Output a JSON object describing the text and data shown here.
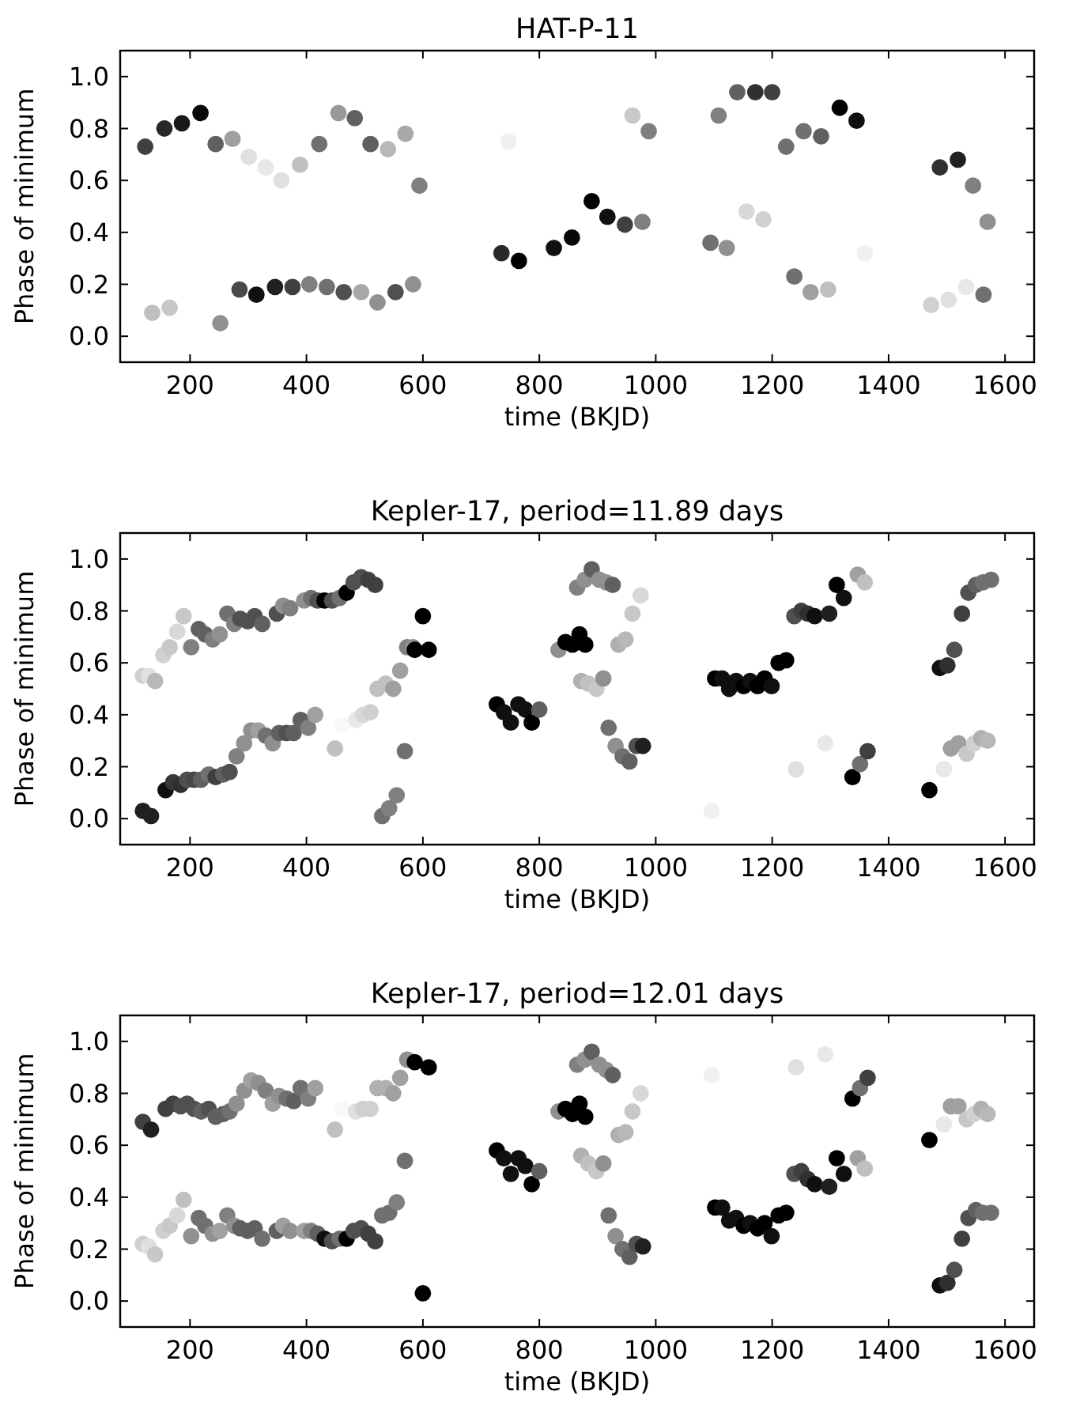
{
  "chart_data": [
    {
      "type": "scatter",
      "title": "HAT-P-11",
      "xlabel": "time (BKJD)",
      "ylabel": "Phase of minimum",
      "marker": "circle",
      "xlim": [
        80,
        1650
      ],
      "ylim": [
        -0.1,
        1.1
      ],
      "xticks": [
        200,
        400,
        600,
        800,
        1000,
        1200,
        1400,
        1600
      ],
      "yticks": [
        {
          "value": 0,
          "label": "0.0"
        },
        {
          "value": 0.2,
          "label": "0.2"
        },
        {
          "value": 0.4,
          "label": "0.4"
        },
        {
          "value": 0.6,
          "label": "0.6"
        },
        {
          "value": 0.8,
          "label": "0.8"
        },
        {
          "value": 1,
          "label": "1.0"
        }
      ],
      "series": [
        {
          "x": [
            123,
            156,
            186,
            218,
            244,
            273,
            301,
            330,
            357,
            389,
            422,
            455,
            483,
            510,
            540,
            570,
            594,
            135,
            165,
            252,
            285,
            314,
            346,
            376,
            405,
            435,
            464,
            494,
            522,
            553,
            583,
            747,
            735,
            765,
            825,
            856,
            890,
            917,
            947,
            977,
            960,
            988,
            1094,
            1122,
            1108,
            1140,
            1171,
            1200,
            1156,
            1185,
            1224,
            1254,
            1284,
            1238,
            1266,
            1296,
            1316,
            1345,
            1359,
            1488,
            1519,
            1545,
            1570,
            1473,
            1503,
            1533,
            1563
          ],
          "values": [
            0.73,
            0.8,
            0.82,
            0.86,
            0.74,
            0.76,
            0.69,
            0.65,
            0.6,
            0.66,
            0.74,
            0.86,
            0.84,
            0.74,
            0.72,
            0.78,
            0.58,
            0.09,
            0.11,
            0.05,
            0.18,
            0.16,
            0.19,
            0.19,
            0.2,
            0.19,
            0.17,
            0.17,
            0.13,
            0.17,
            0.2,
            0.75,
            0.32,
            0.29,
            0.34,
            0.38,
            0.52,
            0.46,
            0.43,
            0.44,
            0.85,
            0.79,
            0.36,
            0.34,
            0.85,
            0.94,
            0.94,
            0.94,
            0.48,
            0.45,
            0.73,
            0.79,
            0.77,
            0.23,
            0.17,
            0.18,
            0.88,
            0.83,
            0.32,
            0.65,
            0.68,
            0.58,
            0.44,
            0.12,
            0.14,
            0.19,
            0.16
          ],
          "colors": [
            "#404040",
            "#282828",
            "#181818",
            "#080808",
            "#606060",
            "#a0a0a0",
            "#e0e0e0",
            "#e8e8e8",
            "#e0e0e0",
            "#c0c0c0",
            "#707070",
            "#999999",
            "#606060",
            "#606060",
            "#b8b8b8",
            "#a8a8a8",
            "#808080",
            "#c0c0c0",
            "#c8c8c8",
            "#909090",
            "#484848",
            "#101010",
            "#202020",
            "#404040",
            "#808080",
            "#707070",
            "#505050",
            "#a8a8a8",
            "#909090",
            "#505050",
            "#909090",
            "#f0f0f0",
            "#282828",
            "#000000",
            "#101010",
            "#080808",
            "#000000",
            "#101010",
            "#404040",
            "#808080",
            "#c8c8c8",
            "#808080",
            "#707070",
            "#909090",
            "#808080",
            "#606060",
            "#303030",
            "#404040",
            "#d8d8d8",
            "#d0d0d0",
            "#707070",
            "#707070",
            "#606060",
            "#707070",
            "#a0a0a0",
            "#c0c0c0",
            "#000000",
            "#101010",
            "#f0f0f0",
            "#303030",
            "#202020",
            "#808080",
            "#909090",
            "#d0d0d0",
            "#e0e0e0",
            "#e8e8e8",
            "#707070"
          ]
        }
      ]
    },
    {
      "type": "scatter",
      "title": "Kepler-17, period=11.89 days",
      "xlabel": "time (BKJD)",
      "ylabel": "Phase of minimum",
      "marker": "circle",
      "xlim": [
        80,
        1650
      ],
      "ylim": [
        -0.1,
        1.1
      ],
      "xticks": [
        200,
        400,
        600,
        800,
        1000,
        1200,
        1400,
        1600
      ],
      "yticks": [
        {
          "value": 0,
          "label": "0.0"
        },
        {
          "value": 0.2,
          "label": "0.2"
        },
        {
          "value": 0.4,
          "label": "0.4"
        },
        {
          "value": 0.6,
          "label": "0.6"
        },
        {
          "value": 0.8,
          "label": "0.8"
        },
        {
          "value": 1,
          "label": "1.0"
        }
      ],
      "series": [
        {
          "x": [
            119,
            129,
            140,
            154,
            165,
            178,
            189,
            202,
            215,
            226,
            239,
            251,
            264,
            276,
            286,
            299,
            311,
            324,
            349,
            360,
            372,
            396,
            408,
            419,
            431,
            444,
            457,
            469,
            481,
            494,
            506,
            518,
            119,
            133,
            158,
            171,
            184,
            195,
            207,
            219,
            232,
            244,
            257,
            268,
            280,
            293,
            305,
            317,
            330,
            342,
            353,
            366,
            378,
            390,
            403,
            415,
            449,
            462,
            485,
            497,
            510,
            530,
            542,
            555,
            569,
            522,
            536,
            549,
            561,
            573,
            583,
            586,
            600,
            610,
            727,
            739,
            751,
            764,
            776,
            787,
            800,
            833,
            845,
            857,
            869,
            879,
            865,
            878,
            890,
            903,
            915,
            926,
            872,
            884,
            898,
            910,
            919,
            931,
            943,
            955,
            967,
            978,
            936,
            948,
            960,
            974,
            1096,
            1102,
            1114,
            1126,
            1138,
            1151,
            1162,
            1175,
            1187,
            1199,
            1211,
            1224,
            1238,
            1250,
            1261,
            1273,
            1298,
            1311,
            1323,
            1241,
            1291,
            1338,
            1351,
            1364,
            1347,
            1359,
            1470,
            1488,
            1501,
            1513,
            1526,
            1537,
            1550,
            1562,
            1576,
            1495,
            1507,
            1520,
            1534,
            1547,
            1559,
            1570
          ],
          "values": [
            0.55,
            0.55,
            0.53,
            0.63,
            0.66,
            0.72,
            0.78,
            0.66,
            0.73,
            0.71,
            0.69,
            0.71,
            0.79,
            0.75,
            0.77,
            0.76,
            0.78,
            0.75,
            0.79,
            0.82,
            0.81,
            0.84,
            0.85,
            0.84,
            0.84,
            0.84,
            0.85,
            0.87,
            0.91,
            0.93,
            0.92,
            0.9,
            0.03,
            0.01,
            0.11,
            0.14,
            0.13,
            0.15,
            0.15,
            0.15,
            0.17,
            0.16,
            0.17,
            0.18,
            0.24,
            0.29,
            0.34,
            0.34,
            0.32,
            0.29,
            0.33,
            0.33,
            0.33,
            0.38,
            0.35,
            0.4,
            0.27,
            0.36,
            0.38,
            0.4,
            0.41,
            0.01,
            0.04,
            0.09,
            0.26,
            0.5,
            0.52,
            0.5,
            0.57,
            0.66,
            0.66,
            0.65,
            0.78,
            0.65,
            0.44,
            0.41,
            0.37,
            0.44,
            0.42,
            0.37,
            0.42,
            0.65,
            0.68,
            0.67,
            0.71,
            0.67,
            0.89,
            0.92,
            0.96,
            0.92,
            0.91,
            0.9,
            0.53,
            0.52,
            0.5,
            0.54,
            0.35,
            0.28,
            0.24,
            0.22,
            0.28,
            0.28,
            0.67,
            0.69,
            0.79,
            0.86,
            0.03,
            0.54,
            0.54,
            0.5,
            0.53,
            0.51,
            0.53,
            0.51,
            0.54,
            0.51,
            0.6,
            0.61,
            0.78,
            0.8,
            0.79,
            0.78,
            0.79,
            0.9,
            0.85,
            0.19,
            0.29,
            0.16,
            0.21,
            0.26,
            0.94,
            0.91,
            0.11,
            0.58,
            0.59,
            0.65,
            0.79,
            0.87,
            0.9,
            0.91,
            0.92,
            0.19,
            0.27,
            0.29,
            0.25,
            0.29,
            0.31,
            0.3
          ],
          "colors": [
            "#d0d0d0",
            "#e0e0e0",
            "#b8b8b8",
            "#d0d0d0",
            "#c8c8c8",
            "#d8d8d8",
            "#c8c8c8",
            "#808080",
            "#606060",
            "#606060",
            "#808080",
            "#909090",
            "#707070",
            "#808080",
            "#505050",
            "#505050",
            "#505050",
            "#606060",
            "#505050",
            "#909090",
            "#808080",
            "#909090",
            "#707070",
            "#505050",
            "#000000",
            "#505050",
            "#707070",
            "#000000",
            "#505050",
            "#505050",
            "#404040",
            "#404040",
            "#202020",
            "#202020",
            "#101010",
            "#383838",
            "#303030",
            "#505050",
            "#484848",
            "#606060",
            "#707070",
            "#404040",
            "#606060",
            "#505050",
            "#808080",
            "#909090",
            "#909090",
            "#a0a0a0",
            "#707070",
            "#909090",
            "#606060",
            "#505050",
            "#606060",
            "#606060",
            "#808080",
            "#a0a0a0",
            "#c0c0c0",
            "#f8f8f8",
            "#e8e8e8",
            "#d8d8d8",
            "#d0d0d0",
            "#707070",
            "#808080",
            "#808080",
            "#707070",
            "#c0c0c0",
            "#c0c0c0",
            "#a0a0a0",
            "#a0a0a0",
            "#808080",
            "#909090",
            "#000000",
            "#000000",
            "#000000",
            "#000000",
            "#101010",
            "#101010",
            "#101010",
            "#101010",
            "#000000",
            "#606060",
            "#909090",
            "#000000",
            "#000000",
            "#000000",
            "#000000",
            "#808080",
            "#909090",
            "#606060",
            "#909090",
            "#909090",
            "#606060",
            "#b0b0b0",
            "#c0c0c0",
            "#c8c8c8",
            "#909090",
            "#707070",
            "#909090",
            "#707070",
            "#606060",
            "#505050",
            "#202020",
            "#b0b0b0",
            "#b8b8b8",
            "#c8c8c8",
            "#d8d8d8",
            "#f0f0f0",
            "#000000",
            "#101010",
            "#101010",
            "#101010",
            "#000000",
            "#101010",
            "#000000",
            "#000000",
            "#101010",
            "#000000",
            "#000000",
            "#505050",
            "#404040",
            "#303030",
            "#101010",
            "#202020",
            "#000000",
            "#101010",
            "#e0e0e0",
            "#e8e8e8",
            "#000000",
            "#707070",
            "#404040",
            "#a0a0a0",
            "#c0c0c0",
            "#000000",
            "#101010",
            "#303030",
            "#505050",
            "#404040",
            "#505050",
            "#606060",
            "#707070",
            "#707070",
            "#e8e8e8",
            "#a0a0a0",
            "#a0a0a0",
            "#c8c8c8",
            "#d0d0d0",
            "#b0b0b0",
            "#b8b8b8"
          ]
        }
      ]
    },
    {
      "type": "scatter",
      "title": "Kepler-17, period=12.01 days",
      "xlabel": "time (BKJD)",
      "ylabel": "Phase of minimum",
      "marker": "circle",
      "xlim": [
        80,
        1650
      ],
      "ylim": [
        -0.1,
        1.1
      ],
      "xticks": [
        200,
        400,
        600,
        800,
        1000,
        1200,
        1400,
        1600
      ],
      "yticks": [
        {
          "value": 0,
          "label": "0.0"
        },
        {
          "value": 0.2,
          "label": "0.2"
        },
        {
          "value": 0.4,
          "label": "0.4"
        },
        {
          "value": 0.6,
          "label": "0.6"
        },
        {
          "value": 0.8,
          "label": "0.8"
        },
        {
          "value": 1,
          "label": "1.0"
        }
      ],
      "series": [
        {
          "x": [
            119,
            133,
            158,
            171,
            184,
            195,
            207,
            219,
            232,
            244,
            257,
            268,
            280,
            293,
            305,
            317,
            330,
            342,
            353,
            366,
            378,
            390,
            403,
            415,
            449,
            462,
            485,
            497,
            510,
            522,
            536,
            549,
            561,
            573,
            586,
            610,
            119,
            129,
            140,
            154,
            165,
            178,
            189,
            202,
            215,
            226,
            239,
            251,
            264,
            276,
            286,
            299,
            311,
            324,
            349,
            360,
            372,
            396,
            408,
            419,
            431,
            444,
            457,
            469,
            481,
            494,
            506,
            518,
            530,
            542,
            555,
            569,
            600,
            727,
            739,
            751,
            764,
            776,
            787,
            800,
            833,
            845,
            857,
            869,
            879,
            865,
            878,
            890,
            903,
            915,
            926,
            872,
            884,
            898,
            910,
            919,
            931,
            943,
            955,
            967,
            978,
            936,
            948,
            960,
            974,
            1096,
            1102,
            1114,
            1126,
            1138,
            1151,
            1162,
            1175,
            1187,
            1199,
            1211,
            1224,
            1238,
            1250,
            1261,
            1273,
            1298,
            1311,
            1323,
            1241,
            1291,
            1338,
            1351,
            1364,
            1347,
            1359,
            1470,
            1488,
            1501,
            1513,
            1526,
            1537,
            1550,
            1562,
            1576,
            1495,
            1507,
            1520,
            1534,
            1547,
            1559,
            1570
          ],
          "values": [
            0.69,
            0.66,
            0.74,
            0.76,
            0.75,
            0.76,
            0.74,
            0.73,
            0.74,
            0.71,
            0.72,
            0.73,
            0.76,
            0.81,
            0.85,
            0.84,
            0.81,
            0.76,
            0.79,
            0.78,
            0.77,
            0.82,
            0.78,
            0.82,
            0.66,
            0.74,
            0.73,
            0.74,
            0.74,
            0.82,
            0.82,
            0.8,
            0.86,
            0.93,
            0.92,
            0.9,
            0.22,
            0.21,
            0.18,
            0.27,
            0.29,
            0.33,
            0.39,
            0.25,
            0.32,
            0.29,
            0.26,
            0.27,
            0.33,
            0.29,
            0.28,
            0.27,
            0.28,
            0.24,
            0.27,
            0.29,
            0.27,
            0.27,
            0.27,
            0.26,
            0.24,
            0.23,
            0.24,
            0.24,
            0.27,
            0.28,
            0.26,
            0.23,
            0.33,
            0.34,
            0.38,
            0.54,
            0.03,
            0.58,
            0.55,
            0.49,
            0.55,
            0.52,
            0.45,
            0.5,
            0.73,
            0.74,
            0.72,
            0.76,
            0.71,
            0.91,
            0.93,
            0.96,
            0.91,
            0.89,
            0.87,
            0.56,
            0.53,
            0.5,
            0.53,
            0.33,
            0.25,
            0.2,
            0.17,
            0.22,
            0.21,
            0.64,
            0.65,
            0.73,
            0.8,
            0.87,
            0.36,
            0.36,
            0.31,
            0.32,
            0.29,
            0.3,
            0.28,
            0.3,
            0.25,
            0.33,
            0.34,
            0.49,
            0.5,
            0.47,
            0.45,
            0.44,
            0.55,
            0.49,
            0.9,
            0.95,
            0.78,
            0.82,
            0.86,
            0.55,
            0.51,
            0.62,
            0.06,
            0.07,
            0.12,
            0.24,
            0.32,
            0.35,
            0.34,
            0.34,
            0.68,
            0.75,
            0.75,
            0.7,
            0.72,
            0.74,
            0.72
          ],
          "colors": [
            "#404040",
            "#202020",
            "#404040",
            "#404040",
            "#505050",
            "#505050",
            "#505050",
            "#606060",
            "#505050",
            "#606060",
            "#606060",
            "#707070",
            "#909090",
            "#909090",
            "#a0a0a0",
            "#909090",
            "#808080",
            "#a0a0a0",
            "#909090",
            "#707070",
            "#606060",
            "#707070",
            "#808080",
            "#a0a0a0",
            "#c0c0c0",
            "#f8f8f8",
            "#e0e0e0",
            "#d0d0d0",
            "#d0d0d0",
            "#b0b0b0",
            "#b0b0b0",
            "#a0a0a0",
            "#a0a0a0",
            "#909090",
            "#000000",
            "#000000",
            "#d0d0d0",
            "#e0e0e0",
            "#c8c8c8",
            "#d0d0d0",
            "#c8c8c8",
            "#d8d8d8",
            "#c0c0c0",
            "#909090",
            "#707070",
            "#707070",
            "#909090",
            "#a0a0a0",
            "#808080",
            "#909090",
            "#606060",
            "#606060",
            "#606060",
            "#707070",
            "#606060",
            "#a0a0a0",
            "#909090",
            "#a0a0a0",
            "#808080",
            "#606060",
            "#101010",
            "#505050",
            "#707070",
            "#000000",
            "#505050",
            "#505050",
            "#404040",
            "#404040",
            "#707070",
            "#707070",
            "#808080",
            "#707070",
            "#000000",
            "#000000",
            "#101010",
            "#101010",
            "#101010",
            "#101010",
            "#000000",
            "#606060",
            "#909090",
            "#000000",
            "#000000",
            "#000000",
            "#000000",
            "#808080",
            "#909090",
            "#606060",
            "#909090",
            "#909090",
            "#606060",
            "#b0b0b0",
            "#c0c0c0",
            "#c8c8c8",
            "#909090",
            "#707070",
            "#909090",
            "#707070",
            "#606060",
            "#505050",
            "#202020",
            "#b0b0b0",
            "#b8b8b8",
            "#c8c8c8",
            "#d8d8d8",
            "#f0f0f0",
            "#000000",
            "#101010",
            "#101010",
            "#101010",
            "#000000",
            "#101010",
            "#000000",
            "#000000",
            "#101010",
            "#000000",
            "#000000",
            "#505050",
            "#404040",
            "#303030",
            "#101010",
            "#202020",
            "#000000",
            "#101010",
            "#e0e0e0",
            "#e8e8e8",
            "#000000",
            "#707070",
            "#404040",
            "#a0a0a0",
            "#c0c0c0",
            "#000000",
            "#101010",
            "#303030",
            "#505050",
            "#404040",
            "#505050",
            "#606060",
            "#707070",
            "#707070",
            "#e8e8e8",
            "#a0a0a0",
            "#a0a0a0",
            "#c8c8c8",
            "#d0d0d0",
            "#b0b0b0",
            "#b8b8b8"
          ]
        }
      ]
    }
  ]
}
